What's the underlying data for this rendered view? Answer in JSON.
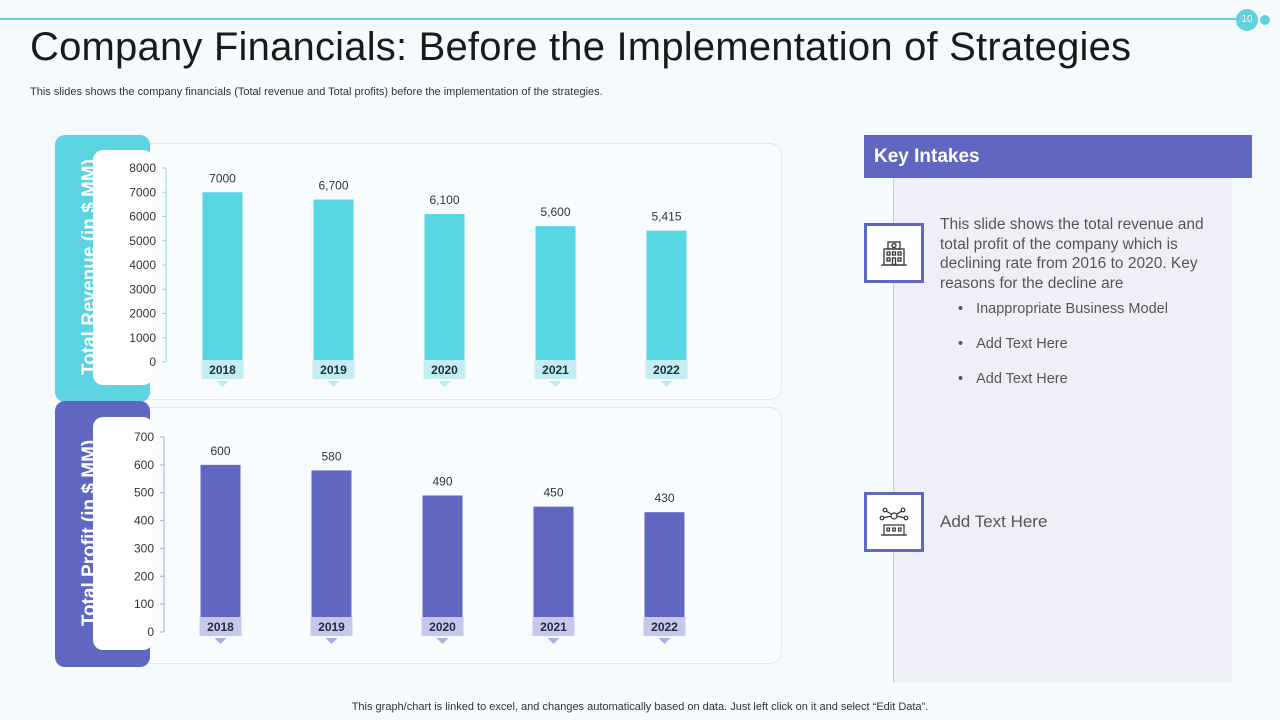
{
  "page": {
    "number": "10",
    "title": "Company Financials: Before the Implementation of Strategies",
    "subtitle": "This slides shows the company financials (Total revenue and Total profits) before the implementation of the strategies.",
    "footer": "This graph/chart is linked to excel,  and changes automatically based on data. Just left click on it and select “Edit Data”."
  },
  "colors": {
    "accent_cyan": "#62d2e0",
    "accent_purple": "#5f67c0",
    "revenue_bar": "#55d6e2",
    "profit_bar": "#5f67c0"
  },
  "chart_data": [
    {
      "type": "bar",
      "title": "",
      "ylabel": "Total Revenue (in $ MM)",
      "xlabel": "",
      "categories": [
        "2018",
        "2019",
        "2020",
        "2021",
        "2022"
      ],
      "values": [
        7000,
        6700,
        6100,
        5600,
        5415
      ],
      "value_labels": [
        "7000",
        "6,700",
        "6,100",
        "5,600",
        "5,415"
      ],
      "yticks": [
        "0",
        "1000",
        "2000",
        "3000",
        "4000",
        "5000",
        "6000",
        "7000",
        "8000"
      ],
      "ylim": [
        0,
        8000
      ]
    },
    {
      "type": "bar",
      "title": "",
      "ylabel": "Total Profit (in $ MM)",
      "xlabel": "",
      "categories": [
        "2018",
        "2019",
        "2020",
        "2021",
        "2022"
      ],
      "values": [
        600,
        580,
        490,
        450,
        430
      ],
      "value_labels": [
        "600",
        "580",
        "490",
        "450",
        "430"
      ],
      "yticks": [
        "0",
        "100",
        "200",
        "300",
        "400",
        "500",
        "600",
        "700"
      ],
      "ylim": [
        0,
        700
      ]
    }
  ],
  "key_intakes": {
    "heading": "Key Intakes",
    "intro": "This slide shows the total revenue and total profit of the company which is declining rate from 2016 to 2020. Key reasons for the decline are",
    "bullets": [
      "Inappropriate Business Model",
      "Add Text Here",
      "Add Text Here"
    ],
    "second_text": "Add Text Here",
    "icons": [
      "building-icon",
      "network-building-icon"
    ]
  }
}
